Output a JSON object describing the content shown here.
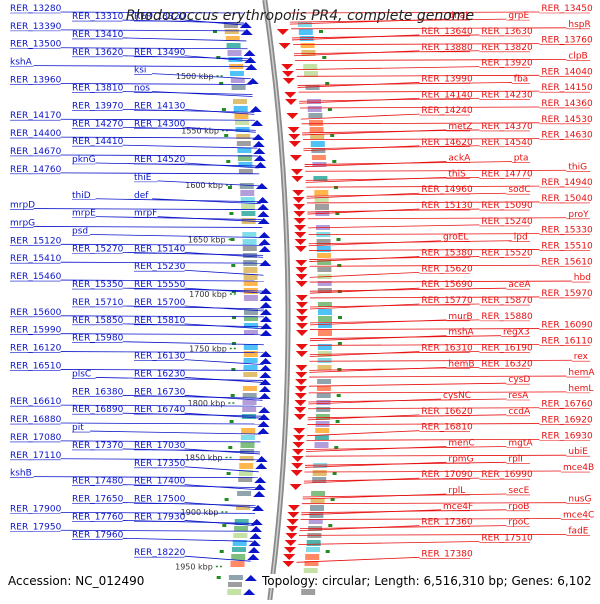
{
  "title": "Rhodococcus erythropolis PR4, complete genome",
  "accession": "Accession: NC_012490",
  "topology": "Topology: circular; Length: 6,516,310 bp; Genes: 6,102",
  "colors": {
    "left": "#0a14c8",
    "right": "#e81010",
    "tick": "#228b22",
    "text": "#555555"
  },
  "scale_ticks": [
    "1500 kbp",
    "1550 kbp",
    "1600 kbp",
    "1650 kbp",
    "1700 kbp",
    "1750 kbp",
    "1800 kbp",
    "1850 kbp",
    "1900 kbp",
    "1950 kbp"
  ],
  "left_labels": [
    "RER_13280",
    "RER_13310",
    "RER_13320",
    "RER_13390",
    "RER_13410",
    "RER_13490",
    "RER_13500",
    "RER_13620",
    "ksi",
    "kshA",
    "RER_13810",
    "nos",
    "RER_13960",
    "RER_13970",
    "RER_14130",
    "RER_14170",
    "RER_14270",
    "RER_14300",
    "RER_14400",
    "RER_14410",
    "RER_14520",
    "RER_14670",
    "pknG",
    "thiE",
    "RER_14760",
    "thiD",
    "def",
    "mrpD",
    "mrpE",
    "mrpF",
    "mrpG",
    "psd",
    "RER_15140",
    "RER_15120",
    "RER_15270",
    "RER_15230",
    "RER_15410",
    "RER_15350",
    "RER_15550",
    "RER_15460",
    "RER_15710",
    "RER_15700",
    "RER_15600",
    "RER_15850",
    "RER_15810",
    "RER_15990",
    "RER_15980",
    "RER_16130",
    "RER_16120",
    "plsC",
    "RER_16230",
    "RER_16510",
    "RER_16380",
    "RER_16730",
    "RER_16610",
    "RER_16890",
    "RER_16740",
    "RER_16880",
    "pit",
    "RER_17030",
    "RER_17080",
    "RER_17370",
    "RER_17350",
    "RER_17110",
    "RER_17480",
    "RER_17400",
    "kshB",
    "RER_17650",
    "RER_17500",
    "RER_17900",
    "RER_17760",
    "RER_17930",
    "RER_17950",
    "RER_17960",
    "RER_18220"
  ],
  "right_labels": [
    "RER_13450",
    "grpE",
    "dnaJ",
    "hspR",
    "RER_13630",
    "RER_13640",
    "RER_13760",
    "RER_13820",
    "RER_13880",
    "clpB",
    "RER_13920",
    "RER_13990",
    "RER_14040",
    "fba",
    "RER_14140",
    "RER_14150",
    "RER_14230",
    "RER_14240",
    "RER_14360",
    "RER_14370",
    "metZ",
    "RER_14530",
    "RER_14540",
    "RER_14620",
    "RER_14630",
    "pta",
    "ackA",
    "thiG",
    "RER_14770",
    "thiS",
    "RER_14940",
    "sodC",
    "RER_14960",
    "RER_15040",
    "RER_15090",
    "RER_15130",
    "proY",
    "RER_15240",
    "groEL",
    "RER_15330",
    "lpd",
    "RER_15380",
    "RER_15510",
    "RER_15520",
    "RER_15620",
    "RER_15610",
    "aceA",
    "RER_15690",
    "hbd",
    "RER_15870",
    "RER_15770",
    "RER_15970",
    "RER_15880",
    "murB",
    "RER_16090",
    "regX3",
    "mshA",
    "RER_16110",
    "RER_16190",
    "RER_16310",
    "rex",
    "RER_16320",
    "hemB",
    "hemA",
    "cysD",
    "cysNC",
    "hemL",
    "resA",
    "RER_16620",
    "RER_16760",
    "ccdA",
    "RER_16810",
    "RER_16920",
    "mgtA",
    "menC",
    "RER_16930",
    "rplI",
    "rpmG",
    "ubiE",
    "RER_16990",
    "RER_17090",
    "mce4B",
    "secE",
    "rplL",
    "nusG",
    "rpoB",
    "mce4F",
    "mce4C",
    "rpoC",
    "RER_17360",
    "fadE",
    "RER_17510",
    "RER_17380"
  ]
}
